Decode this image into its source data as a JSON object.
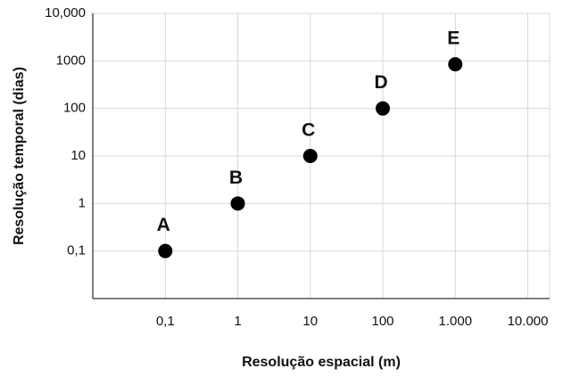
{
  "chart_data": {
    "type": "scatter",
    "x_label": "Resolução espacial (m)",
    "y_label": "Resolução temporal (dias)",
    "x": [
      0.1,
      1,
      10,
      100,
      1000
    ],
    "values": [
      0.1,
      1,
      10,
      100,
      850
    ],
    "point_labels": [
      "A",
      "B",
      "C",
      "D",
      "E"
    ],
    "color": "#000000",
    "xscale": "log",
    "yscale": "log",
    "xlim": [
      0.01,
      20000
    ],
    "ylim": [
      0.01,
      10000
    ],
    "xticks": [
      {
        "value": 0.1,
        "label": "0,1"
      },
      1,
      10,
      100,
      {
        "value": 1000,
        "label": "1.000"
      },
      {
        "value": 10000,
        "label": "10.000"
      }
    ],
    "yticks": [
      {
        "value": 0.1,
        "label": "0,1"
      },
      1,
      10,
      100,
      1000,
      {
        "value": 10000,
        "label": "10,000"
      }
    ],
    "grid": true
  }
}
